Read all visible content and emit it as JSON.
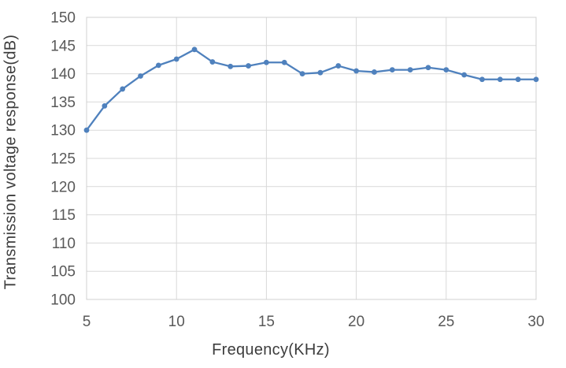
{
  "chart_data": {
    "type": "line",
    "title": "",
    "xlabel": "Frequency(KHz)",
    "ylabel": "Transmission voltage response(dB)",
    "x": [
      5,
      6,
      7,
      8,
      9,
      10,
      11,
      12,
      13,
      14,
      15,
      16,
      17,
      18,
      19,
      20,
      21,
      22,
      23,
      24,
      25,
      26,
      27,
      28,
      29,
      30
    ],
    "values": [
      130.0,
      134.3,
      137.3,
      139.6,
      141.5,
      142.6,
      144.3,
      142.1,
      141.3,
      141.4,
      142.0,
      142.0,
      140.0,
      140.2,
      141.4,
      140.5,
      140.3,
      140.7,
      140.7,
      141.1,
      140.7,
      139.8,
      139.0,
      139.0,
      139.0,
      139.0
    ],
    "xlim": [
      5,
      30
    ],
    "ylim": [
      100,
      150
    ],
    "x_ticks": [
      5,
      10,
      15,
      20,
      25,
      30
    ],
    "y_ticks": [
      100,
      105,
      110,
      115,
      120,
      125,
      130,
      135,
      140,
      145,
      150
    ],
    "grid": true,
    "legend_position": "none",
    "marker": "circle",
    "colors": {
      "line": "#4F81BD",
      "marker": "#4F81BD",
      "gridline": "#D9D9D9",
      "plot_border": "#D0D0D0",
      "tick_label": "#595959",
      "axis_title": "#3D3D3D",
      "background": "#FFFFFF"
    }
  }
}
